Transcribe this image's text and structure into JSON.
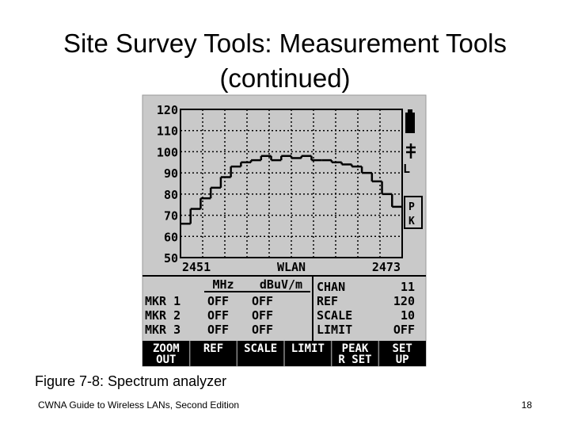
{
  "title": [
    "Site Survey Tools: Measurement Tools",
    "(continued)"
  ],
  "screen": {
    "chart_data": {
      "type": "step",
      "ylim": [
        50,
        120
      ],
      "yticks": [
        120,
        110,
        100,
        90,
        80,
        70,
        60,
        50
      ],
      "grid": true,
      "color": "#000000",
      "values": [
        66,
        73,
        78,
        83,
        88,
        93,
        95,
        96,
        98,
        96,
        98,
        97,
        98,
        96,
        96,
        95,
        94,
        93,
        90,
        86,
        80,
        74
      ],
      "x_labels": [
        "2451",
        "WLAN",
        "2473"
      ]
    },
    "side_labels": {
      "l": "L",
      "p": "P",
      "k": "K"
    },
    "marker_header": [
      "MHz",
      "dBuV/m"
    ],
    "markers": [
      [
        "MKR 1",
        "OFF",
        "OFF"
      ],
      [
        "MKR 2",
        "OFF",
        "OFF"
      ],
      [
        "MKR 3",
        "OFF",
        "OFF"
      ]
    ],
    "settings": [
      [
        "CHAN",
        "11"
      ],
      [
        "REF",
        "120"
      ],
      [
        "SCALE",
        "10"
      ],
      [
        "LIMIT",
        "OFF"
      ]
    ],
    "buttons": [
      [
        "ZOOM",
        "OUT"
      ],
      [
        "REF"
      ],
      [
        "SCALE"
      ],
      [
        "LIMIT"
      ],
      [
        "PEAK",
        "R SET"
      ],
      [
        "SET",
        "UP"
      ]
    ]
  },
  "caption": "Figure 7-8: Spectrum analyzer",
  "footer": "CWNA Guide to Wireless LANs, Second Edition",
  "page_number": "18"
}
